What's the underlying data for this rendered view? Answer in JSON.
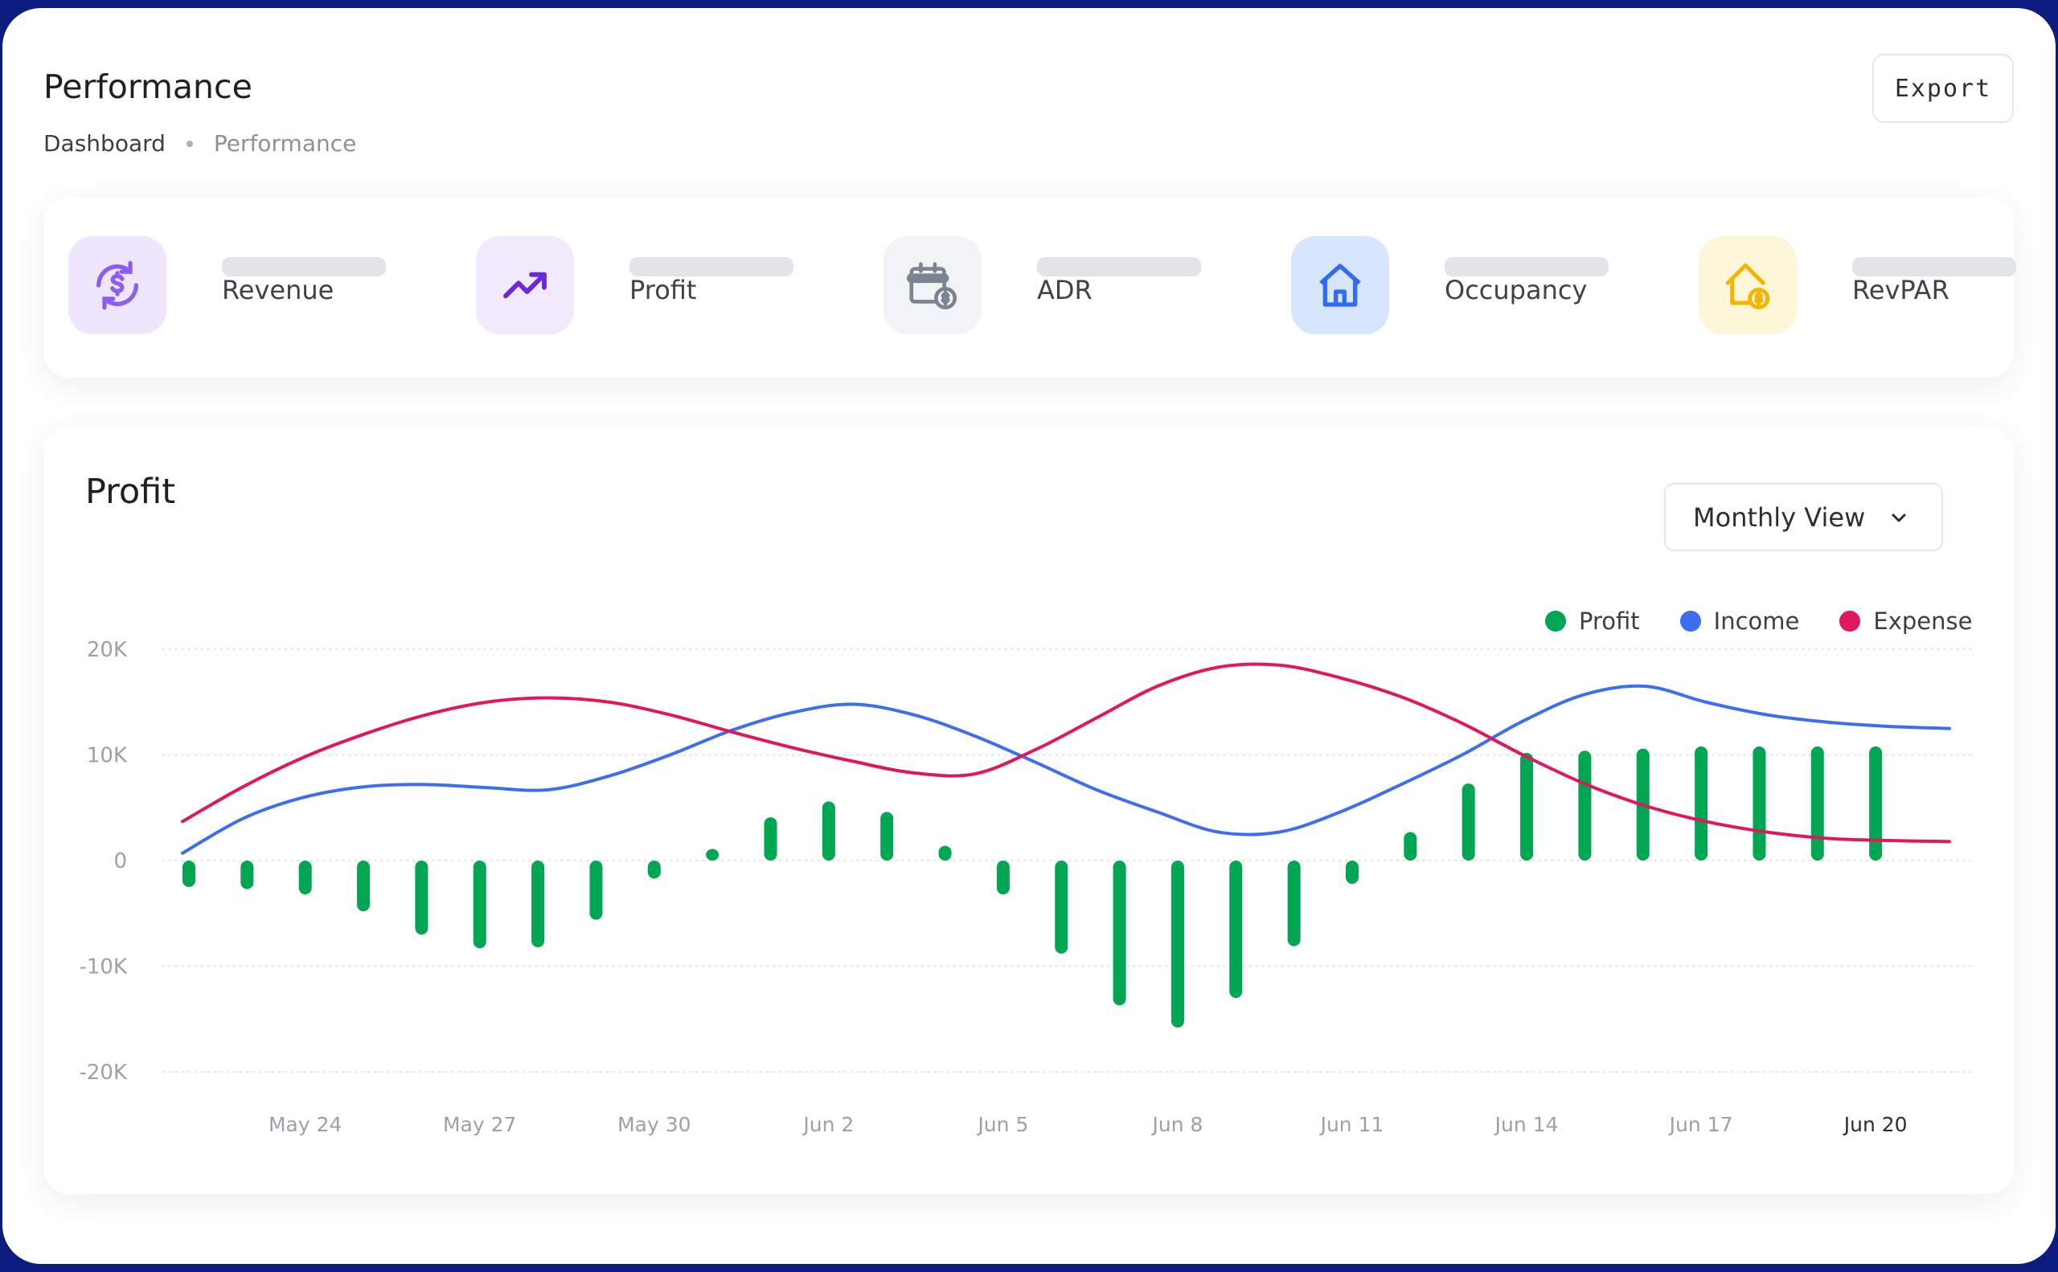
{
  "header": {
    "title": "Performance",
    "breadcrumb": [
      "Dashboard",
      "Performance"
    ],
    "export_label": "Export"
  },
  "kpis": [
    {
      "label": "Revenue",
      "icon": "revenue-cycle-icon",
      "bg": "#ede6fd",
      "color": "#8b5cf6"
    },
    {
      "label": "Profit",
      "icon": "trending-up-icon",
      "bg": "#f1eafd",
      "color": "#6d28d9"
    },
    {
      "label": "ADR",
      "icon": "calendar-dollar-icon",
      "bg": "#f1f3f5",
      "color": "#7a8591"
    },
    {
      "label": "Occupancy",
      "icon": "house-icon",
      "bg": "#d8e5fe",
      "color": "#2f6bf3"
    },
    {
      "label": "RevPAR",
      "icon": "house-dollar-icon",
      "bg": "#fef6d9",
      "color": "#f5b400"
    }
  ],
  "chart_section": {
    "title": "Profit",
    "view_select": "Monthly View"
  },
  "chart_data": {
    "type": "bar+line",
    "ylim": [
      -20000,
      20000
    ],
    "yticks": [
      {
        "v": 20000,
        "label": "20K"
      },
      {
        "v": 10000,
        "label": "10K"
      },
      {
        "v": 0,
        "label": "0"
      },
      {
        "v": -10000,
        "label": "-10K"
      },
      {
        "v": -20000,
        "label": "-20K"
      }
    ],
    "x": [
      "May 22",
      "May 23",
      "May 24",
      "May 25",
      "May 26",
      "May 27",
      "May 28",
      "May 29",
      "May 30",
      "May 31",
      "Jun 1",
      "Jun 2",
      "Jun 3",
      "Jun 4",
      "Jun 5",
      "Jun 6",
      "Jun 7",
      "Jun 8",
      "Jun 9",
      "Jun 10",
      "Jun 11",
      "Jun 12",
      "Jun 13",
      "Jun 14",
      "Jun 15",
      "Jun 16",
      "Jun 17",
      "Jun 18",
      "Jun 19",
      "Jun 20"
    ],
    "xticks": [
      "May 24",
      "May 27",
      "May 30",
      "Jun 2",
      "Jun 5",
      "Jun 8",
      "Jun 11",
      "Jun 14",
      "Jun 17",
      "Jun 20"
    ],
    "grid": true,
    "legend": "top-right",
    "series": [
      {
        "name": "Profit",
        "type": "bar",
        "color": "#00a651",
        "values": [
          -2500,
          -2700,
          -3200,
          -4800,
          -7000,
          -8300,
          -8200,
          -5600,
          -1700,
          1100,
          4100,
          5600,
          4600,
          1400,
          -3200,
          -8800,
          -13700,
          -15800,
          -13000,
          -8100,
          -2200,
          2700,
          7300,
          10200,
          10400,
          10600,
          10800,
          10800,
          10800,
          10800
        ]
      },
      {
        "name": "Income",
        "type": "line",
        "color": "#3d6ef0",
        "values": [
          700,
          4000,
          6000,
          7000,
          7200,
          6900,
          6700,
          8000,
          10000,
          12300,
          14000,
          14800,
          13800,
          11800,
          9300,
          6700,
          4600,
          2700,
          2700,
          4600,
          7200,
          10000,
          13200,
          15700,
          16500,
          15000,
          13800,
          13100,
          12700,
          12500
        ]
      },
      {
        "name": "Expense",
        "type": "line",
        "color": "#e0165e",
        "values": [
          3700,
          7000,
          9800,
          12000,
          13800,
          15000,
          15400,
          15000,
          13800,
          12200,
          10700,
          9400,
          8300,
          8200,
          10500,
          13500,
          16500,
          18300,
          18500,
          17300,
          15500,
          13000,
          10000,
          7300,
          5200,
          3700,
          2700,
          2100,
          1900,
          1800
        ]
      }
    ]
  }
}
